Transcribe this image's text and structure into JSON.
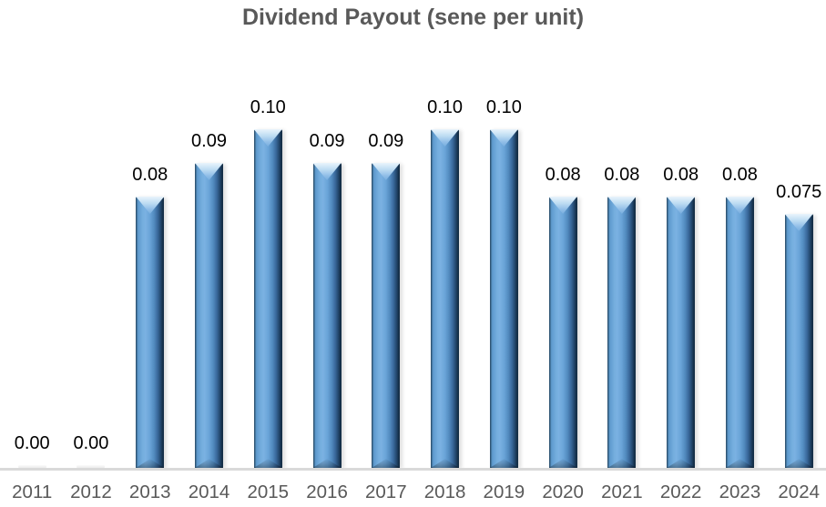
{
  "chart_data": {
    "type": "bar",
    "title": "Dividend Payout (sene per unit)",
    "xlabel": "",
    "ylabel": "",
    "categories": [
      "2011",
      "2012",
      "2013",
      "2014",
      "2015",
      "2016",
      "2017",
      "2018",
      "2019",
      "2020",
      "2021",
      "2022",
      "2023",
      "2024"
    ],
    "values": [
      0.0,
      0.0,
      0.08,
      0.09,
      0.1,
      0.09,
      0.09,
      0.1,
      0.1,
      0.08,
      0.08,
      0.08,
      0.08,
      0.075
    ],
    "value_labels": [
      "0.00",
      "0.00",
      "0.08",
      "0.09",
      "0.10",
      "0.09",
      "0.09",
      "0.10",
      "0.10",
      "0.08",
      "0.08",
      "0.08",
      "0.08",
      "0.075"
    ],
    "ylim": [
      0,
      0.1
    ],
    "grid": "off",
    "legend": "none",
    "data_labels": "above-bars",
    "colors": {
      "bar_fill": "#5b9bd5",
      "bar_highlight": "#7ab1e2",
      "bar_shadow_edge": "#18324b",
      "title_text": "#595959",
      "axis_label_text": "#595959",
      "data_label_text": "#000000",
      "axis_line": "#d9d9d9",
      "background": "#ffffff"
    }
  }
}
